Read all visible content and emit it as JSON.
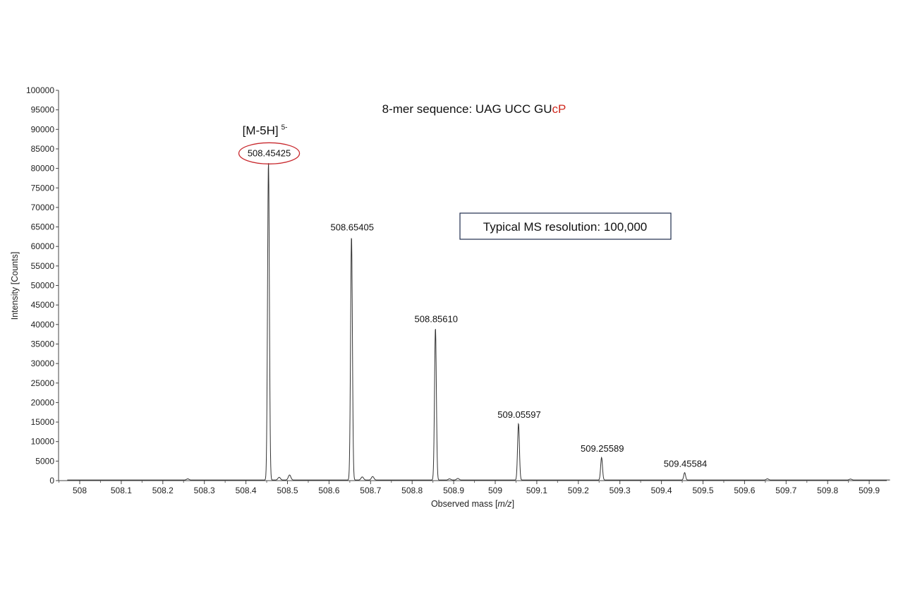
{
  "chart_data": {
    "type": "line",
    "title": "8-mer sequence: UAG UCC GU",
    "title_highlight": "cP",
    "title_highlight_color": "#d0281e",
    "xlabel_prefix": "Observed mass [",
    "xlabel_italic": "m/z",
    "xlabel_suffix": "]",
    "ylabel": "Intensity [Counts]",
    "xlim": [
      507.97,
      509.95
    ],
    "ylim": [
      0,
      100000
    ],
    "x_ticks": [
      "508",
      "508.1",
      "508.2",
      "508.3",
      "508.4",
      "508.5",
      "508.6",
      "508.7",
      "508.8",
      "508.9",
      "509",
      "509.1",
      "509.2",
      "509.3",
      "509.4",
      "509.5",
      "509.6",
      "509.7",
      "509.8",
      "509.9"
    ],
    "y_ticks": [
      "0",
      "5000",
      "10000",
      "15000",
      "20000",
      "25000",
      "30000",
      "35000",
      "40000",
      "45000",
      "50000",
      "55000",
      "60000",
      "65000",
      "70000",
      "75000",
      "80000",
      "85000",
      "90000",
      "95000",
      "100000"
    ],
    "grid": false,
    "line_color": "#333333",
    "peaks": [
      {
        "label": "508.45425",
        "x": 508.45425,
        "y": 81500
      },
      {
        "label": "508.65405",
        "x": 508.65405,
        "y": 62500
      },
      {
        "label": "508.85610",
        "x": 508.8561,
        "y": 39000
      },
      {
        "label": "509.05597",
        "x": 509.05597,
        "y": 14500
      },
      {
        "label": "509.25589",
        "x": 509.25589,
        "y": 5800
      },
      {
        "label": "509.45584",
        "x": 509.45584,
        "y": 1900
      }
    ],
    "minor_peaks": [
      {
        "x": 508.26,
        "y": 300
      },
      {
        "x": 508.48,
        "y": 700
      },
      {
        "x": 508.505,
        "y": 1300
      },
      {
        "x": 508.68,
        "y": 800
      },
      {
        "x": 508.705,
        "y": 900
      },
      {
        "x": 508.89,
        "y": 300
      },
      {
        "x": 508.91,
        "y": 400
      },
      {
        "x": 509.655,
        "y": 300
      },
      {
        "x": 509.855,
        "y": 250
      }
    ],
    "highlighted_peak": "508.45425",
    "highlight_color": "#c8282d",
    "ion_label": "[M-5H]",
    "ion_charge": "5-",
    "resolution_note": "Typical MS resolution: 100,000",
    "resolution_note_border": "#1f2d4d"
  }
}
